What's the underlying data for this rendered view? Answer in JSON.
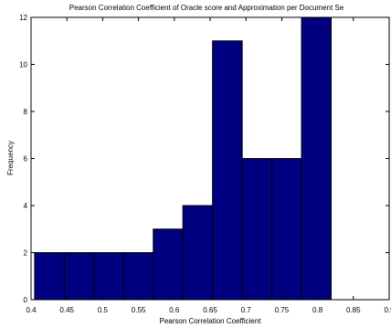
{
  "chart_data": {
    "type": "bar",
    "title": "Pearson Correlation Coefficient of Oracle score and Approximation per Document Se",
    "xlabel": "Pearson Correlation Coefficient",
    "ylabel": "Frequency",
    "xlim": [
      0.4,
      0.9
    ],
    "ylim": [
      0,
      12
    ],
    "grid": false,
    "x_ticks": [
      0.4,
      0.45,
      0.5,
      0.55,
      0.6,
      0.65,
      0.7,
      0.75,
      0.8,
      0.85,
      0.9
    ],
    "x_tick_labels": [
      "0.4",
      "0.45",
      "0.5",
      "0.55",
      "0.6",
      "0.65",
      "0.7",
      "0.75",
      "0.8",
      "0.85",
      "0.9"
    ],
    "y_ticks": [
      0,
      2,
      4,
      6,
      8,
      10,
      12
    ],
    "y_tick_labels": [
      "0",
      "2",
      "4",
      "6",
      "8",
      "10",
      "12"
    ],
    "bin_edges": [
      0.405,
      0.4464,
      0.4878,
      0.5292,
      0.5706,
      0.612,
      0.6534,
      0.6948,
      0.7362,
      0.7776,
      0.819
    ],
    "values": [
      2,
      2,
      2,
      2,
      3,
      4,
      11,
      6,
      6,
      12
    ],
    "bar_color": "#000080",
    "edge_color": "#000000"
  }
}
